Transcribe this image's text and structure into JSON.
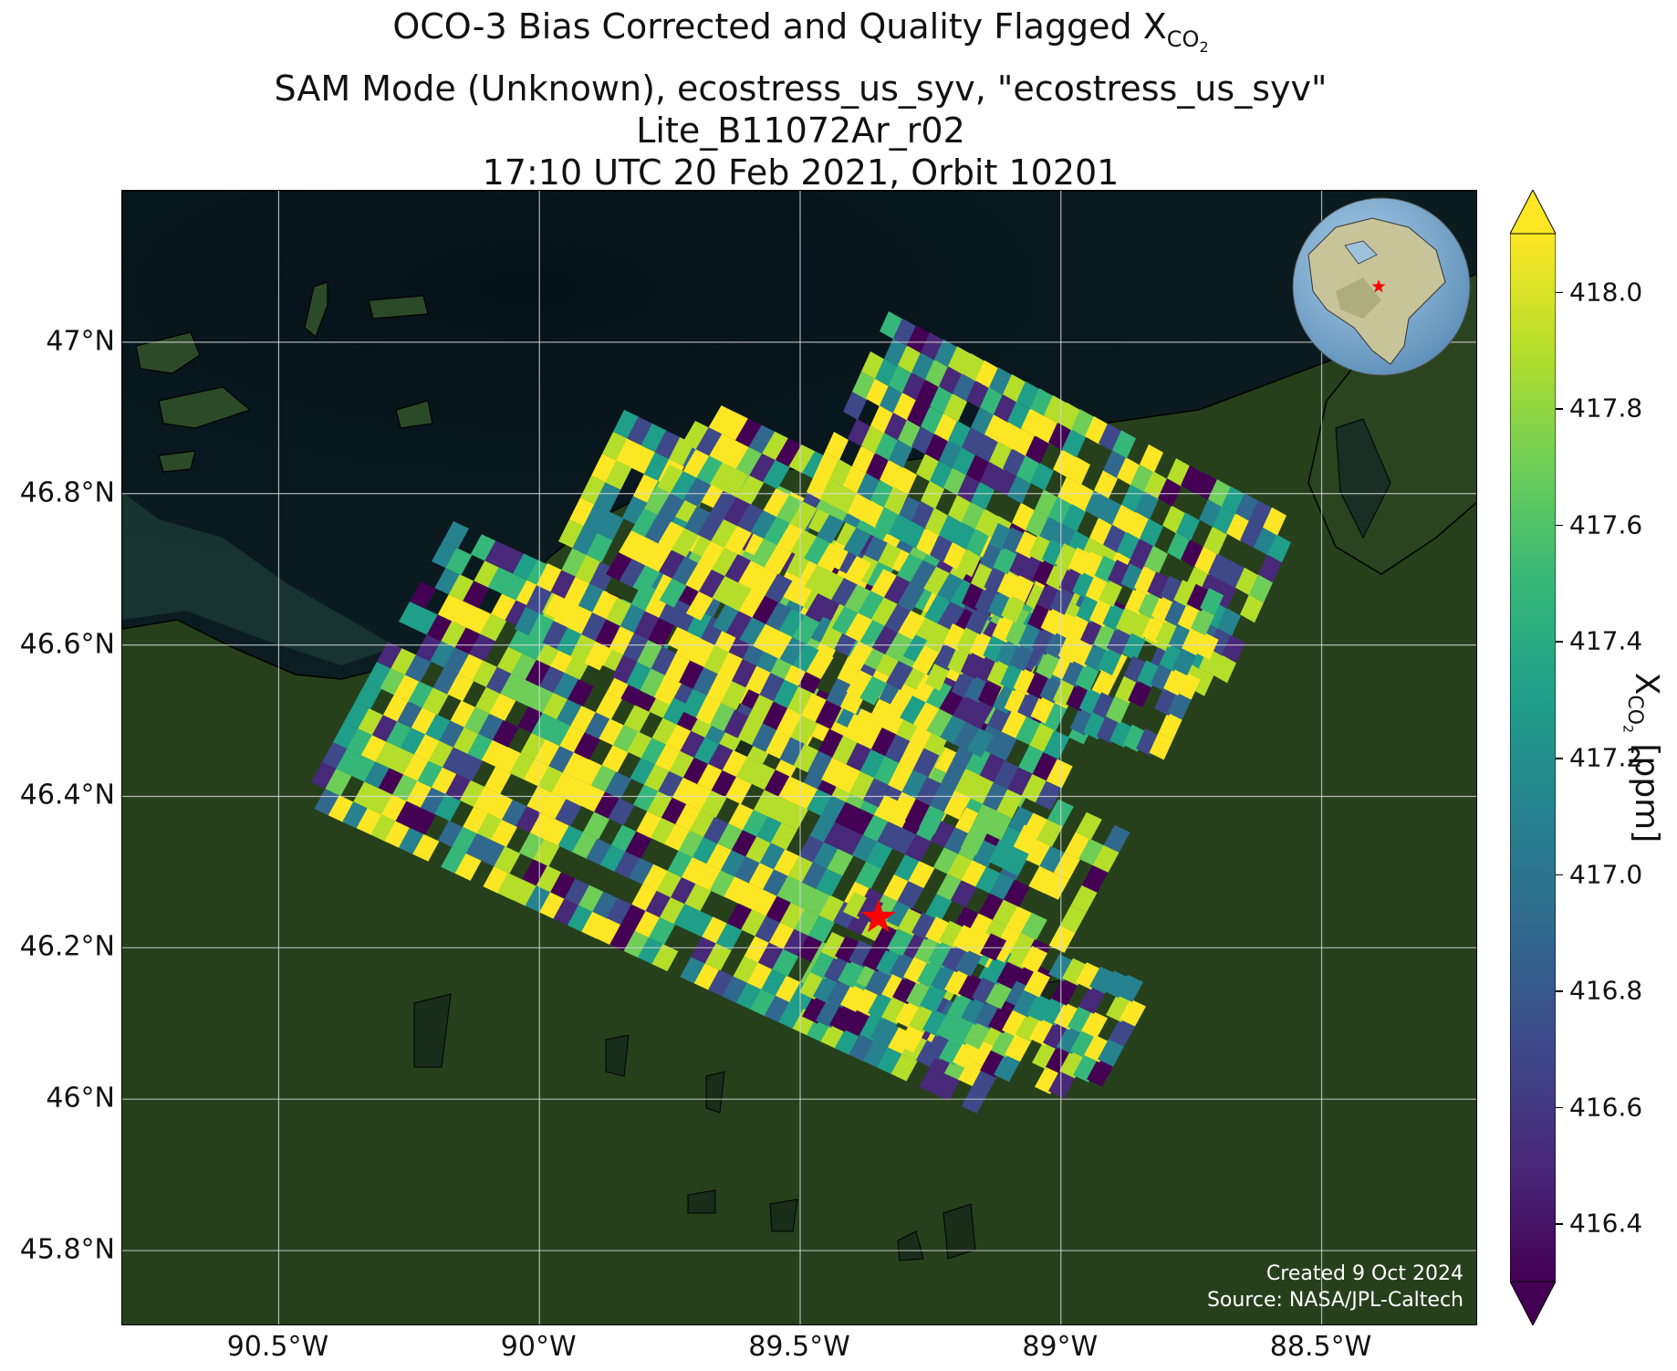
{
  "title": {
    "line1_prefix": "OCO-3 Bias Corrected and Quality Flagged X",
    "line1_sub": "CO",
    "line1_subsub": "2",
    "line2": "SAM Mode (Unknown), ecostress_us_syv, \"ecostress_us_syv\"",
    "line3": "Lite_B11072Ar_r02",
    "line4": "17:10 UTC 20 Feb 2021, Orbit 10201"
  },
  "map": {
    "lat_labels": [
      "47°N",
      "46.8°N",
      "46.6°N",
      "46.4°N",
      "46.2°N",
      "46°N",
      "45.8°N"
    ],
    "lon_labels": [
      "90.5°W",
      "90°W",
      "89.5°W",
      "89°W",
      "88.5°W"
    ],
    "lat_values": [
      47.0,
      46.8,
      46.6,
      46.4,
      46.2,
      46.0,
      45.8
    ],
    "lon_values": [
      -90.5,
      -90.0,
      -89.5,
      -89.0,
      -88.5
    ],
    "extent": {
      "lon_min": -90.8,
      "lon_max": -88.2,
      "lat_min": 45.7,
      "lat_max": 47.2
    },
    "target_marker": {
      "lon": -89.35,
      "lat": 46.24,
      "color": "#ff0000",
      "icon": "star-icon"
    },
    "credits": {
      "line1": "Created 9 Oct 2024",
      "line2": "Source: NASA/JPL-Caltech"
    },
    "inset_globe": {
      "icon": "globe-icon",
      "marker_color": "#ff0000"
    }
  },
  "colorbar": {
    "label_prefix": "X",
    "label_sub": "CO",
    "label_subsub": "2",
    "label_suffix": " [ppm]",
    "ticks": [
      "418.0",
      "417.8",
      "417.6",
      "417.4",
      "417.2",
      "417.0",
      "416.8",
      "416.6",
      "416.4"
    ],
    "tick_values": [
      418.0,
      417.8,
      417.6,
      417.4,
      417.2,
      417.0,
      416.8,
      416.6,
      416.4
    ],
    "range": [
      416.3,
      418.1
    ],
    "colormap": "viridis",
    "extend": "both",
    "colors": [
      "#440154",
      "#482878",
      "#3e4989",
      "#31688e",
      "#26828e",
      "#1f9e89",
      "#35b779",
      "#6ece58",
      "#b5de2b",
      "#fde725"
    ]
  }
}
